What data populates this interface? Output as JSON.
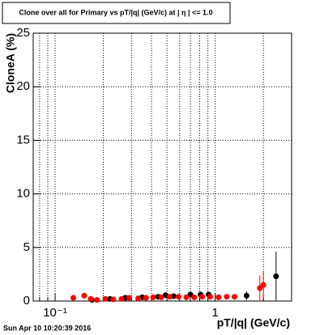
{
  "chart_data": {
    "type": "scatter",
    "title": "Clone  over all for Primary vs pT/|q| (GeV/c) at |  η | <= 1.0",
    "x_label": "pT/|q| (GeV/c)",
    "y_label": "CloneA (%)",
    "timestamp": "Sun Apr 10 10:20:39 2016",
    "xscale": "log",
    "grid": true,
    "xlim": [
      0.073,
      3.0
    ],
    "ylim": [
      0,
      25
    ],
    "xticks": [
      {
        "value": 0.1,
        "label": "10⁻¹"
      },
      1
    ],
    "xminorticks": [
      0.08,
      0.09,
      0.2,
      0.3,
      0.4,
      0.5,
      0.6,
      0.7,
      0.8,
      0.9,
      2,
      3
    ],
    "yticks": [
      0,
      5,
      10,
      15,
      20,
      25
    ],
    "series": [
      {
        "name": "black",
        "color": "#000000",
        "x": [
          0.17,
          0.22,
          0.275,
          0.35,
          0.44,
          0.49,
          0.55,
          0.7,
          0.81,
          0.91,
          1.57,
          2.4
        ],
        "values": [
          0.1,
          0.2,
          0.3,
          0.35,
          0.4,
          0.55,
          0.45,
          0.6,
          0.6,
          0.6,
          0.5,
          2.3
        ],
        "errors": [
          0.1,
          0.1,
          0.1,
          0.1,
          0.1,
          0.15,
          0.15,
          0.2,
          0.2,
          0.2,
          0.4,
          2.3
        ]
      },
      {
        "name": "red",
        "color": "#ff0000",
        "x": [
          0.13,
          0.152,
          0.167,
          0.183,
          0.206,
          0.231,
          0.26,
          0.29,
          0.33,
          0.37,
          0.41,
          0.46,
          0.52,
          0.59,
          0.66,
          0.74,
          0.83,
          0.93,
          1.05,
          1.18,
          1.32,
          1.9,
          2.0
        ],
        "values": [
          0.3,
          0.5,
          0.2,
          0.1,
          0.2,
          0.15,
          0.2,
          0.3,
          0.25,
          0.3,
          0.35,
          0.35,
          0.4,
          0.4,
          0.35,
          0.35,
          0.4,
          0.4,
          0.35,
          0.4,
          0.4,
          1.2,
          1.5
        ],
        "errors": [
          0.1,
          0.1,
          0.1,
          0.1,
          0.1,
          0.1,
          0.1,
          0.1,
          0.1,
          0.1,
          0.1,
          0.1,
          0.1,
          0.1,
          0.1,
          0.1,
          0.15,
          0.15,
          0.15,
          0.2,
          0.2,
          1.2,
          1.3
        ]
      }
    ]
  }
}
